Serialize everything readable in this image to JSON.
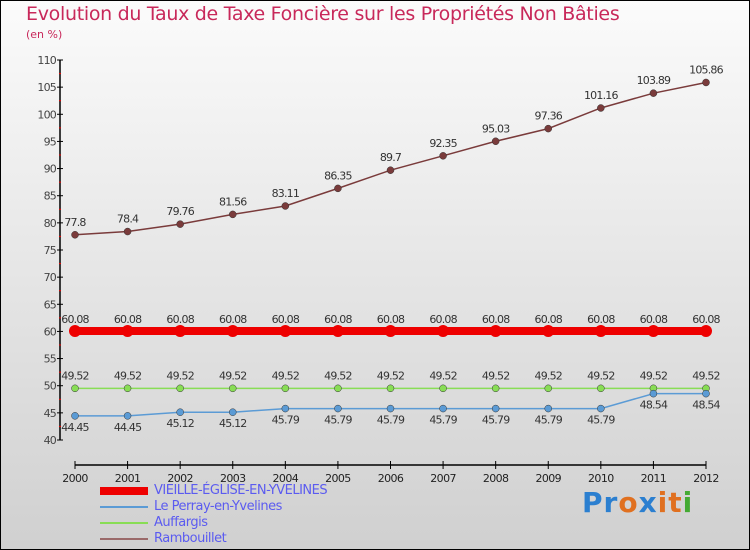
{
  "chart_data": {
    "type": "line",
    "title": "Evolution du Taux de Taxe Foncière sur les Propriétés Non Bâties",
    "subtitle": "(en %)",
    "xlabel": "",
    "ylabel": "",
    "x": [
      "2000",
      "2001",
      "2002",
      "2003",
      "2004",
      "2005",
      "2006",
      "2007",
      "2008",
      "2009",
      "2010",
      "2011",
      "2012"
    ],
    "ylim": [
      40,
      110
    ],
    "yticks": [
      "40",
      "45",
      "50",
      "55",
      "60",
      "65",
      "70",
      "75",
      "80",
      "85",
      "90",
      "95",
      "100",
      "105",
      "110"
    ],
    "legend_position": "bottom-left",
    "series": [
      {
        "name": "VIEILLE-ÉGLISE-EN-YVELINES",
        "color": "#ee0000",
        "values": [
          60.08,
          60.08,
          60.08,
          60.08,
          60.08,
          60.08,
          60.08,
          60.08,
          60.08,
          60.08,
          60.08,
          60.08,
          60.08
        ],
        "labels": [
          "60.08",
          "60.08",
          "60.08",
          "60.08",
          "60.08",
          "60.08",
          "60.08",
          "60.08",
          "60.08",
          "60.08",
          "60.08",
          "60.08",
          "60.08"
        ]
      },
      {
        "name": "Le Perray-en-Yvelines",
        "color": "#5b9bd5",
        "values": [
          44.45,
          44.45,
          45.12,
          45.12,
          45.79,
          45.79,
          45.79,
          45.79,
          45.79,
          45.79,
          45.79,
          48.54,
          48.54
        ],
        "labels": [
          "44.45",
          "44.45",
          "45.12",
          "45.12",
          "45.79",
          "45.79",
          "45.79",
          "45.79",
          "45.79",
          "45.79",
          "45.79",
          "48.54",
          "48.54"
        ]
      },
      {
        "name": "Auffargis",
        "color": "#88dd55",
        "values": [
          49.52,
          49.52,
          49.52,
          49.52,
          49.52,
          49.52,
          49.52,
          49.52,
          49.52,
          49.52,
          49.52,
          49.52,
          49.52
        ],
        "labels": [
          "49.52",
          "49.52",
          "49.52",
          "49.52",
          "49.52",
          "49.52",
          "49.52",
          "49.52",
          "49.52",
          "49.52",
          "49.52",
          "49.52",
          "49.52"
        ]
      },
      {
        "name": "Rambouillet",
        "color": "#7a3b3b",
        "values": [
          77.8,
          78.4,
          79.76,
          81.56,
          83.11,
          86.35,
          89.7,
          92.35,
          95.03,
          97.36,
          101.16,
          103.89,
          105.86
        ],
        "labels": [
          "77.8",
          "78.4",
          "79.76",
          "81.56",
          "83.11",
          "86.35",
          "89.7",
          "92.35",
          "95.03",
          "97.36",
          "101.16",
          "103.89",
          "105.86"
        ]
      }
    ]
  },
  "logo": {
    "text": "Proxiti",
    "letters": [
      "P",
      "r",
      "o",
      "x",
      "i",
      "t",
      "i"
    ],
    "colors": [
      "#2b7fd0",
      "#2b7fd0",
      "#e07020",
      "#2b7fd0",
      "#e07020",
      "#e07020",
      "#44aa33"
    ]
  }
}
